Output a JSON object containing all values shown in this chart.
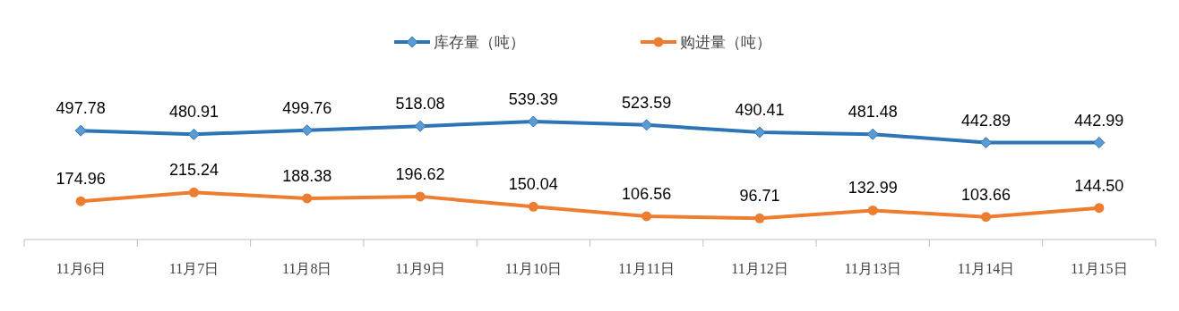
{
  "chart_data": {
    "type": "line",
    "categories": [
      "11月6日",
      "11月7日",
      "11月8日",
      "11月9日",
      "11月10日",
      "11月11日",
      "11月12日",
      "11月13日",
      "11月14日",
      "11月15日"
    ],
    "series": [
      {
        "name": "库存量（吨）",
        "color": "#2e75b6",
        "marker": "diamond",
        "values": [
          497.78,
          480.91,
          499.76,
          518.08,
          539.39,
          523.59,
          490.41,
          481.48,
          442.89,
          442.99
        ],
        "value_labels": [
          "497.78",
          "480.91",
          "499.76",
          "518.08",
          "539.39",
          "523.59",
          "490.41",
          "481.48",
          "442.89",
          "442.99"
        ]
      },
      {
        "name": "购进量（吨）",
        "color": "#ed7d31",
        "marker": "circle",
        "values": [
          174.96,
          215.24,
          188.38,
          196.62,
          150.04,
          106.56,
          96.71,
          132.99,
          103.66,
          144.5
        ],
        "value_labels": [
          "174.96",
          "215.24",
          "188.38",
          "196.62",
          "150.04",
          "106.56",
          "96.71",
          "132.99",
          "103.66",
          "144.50"
        ]
      }
    ],
    "legend": "top"
  }
}
